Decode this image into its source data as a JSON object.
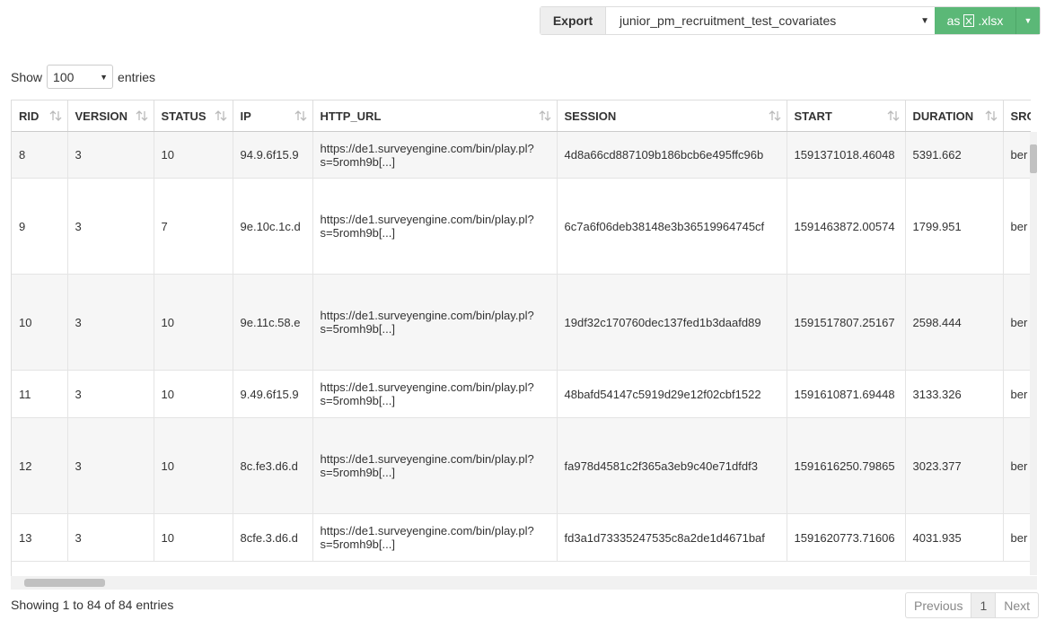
{
  "export": {
    "label": "Export",
    "dataset": "junior_pm_recruitment_test_covariates",
    "button_prefix": "as",
    "format": ".xlsx"
  },
  "length": {
    "prefix": "Show",
    "value": "100",
    "suffix": "entries"
  },
  "table": {
    "columns": [
      "RID",
      "VERSION",
      "STATUS",
      "IP",
      "HTTP_URL",
      "SESSION",
      "START",
      "DURATION",
      "SRC"
    ],
    "rows": [
      [
        "8",
        "3",
        "10",
        "94.9.6f15.9",
        [
          "https://de1.surveyengine.com/bin/play.pl?",
          "s=5romh9b[...]"
        ],
        "4d8a66cd887109b186bcb6e495ffc96b",
        "1591371018.46048",
        "5391.662",
        "ber"
      ],
      [
        "9",
        "3",
        "7",
        "9e.10c.1c.d",
        [
          "https://de1.surveyengine.com/bin/play.pl?",
          "s=5romh9b[...]"
        ],
        "6c7a6f06deb38148e3b36519964745cf",
        "1591463872.00574",
        "1799.951",
        "ber"
      ],
      [
        "10",
        "3",
        "10",
        "9e.11c.58.e",
        [
          "https://de1.surveyengine.com/bin/play.pl?",
          "s=5romh9b[...]"
        ],
        "19df32c170760dec137fed1b3daafd89",
        "1591517807.25167",
        "2598.444",
        "ber"
      ],
      [
        "11",
        "3",
        "10",
        "9.49.6f15.9",
        [
          "https://de1.surveyengine.com/bin/play.pl?",
          "s=5romh9b[...]"
        ],
        "48bafd54147c5919d29e12f02cbf1522",
        "1591610871.69448",
        "3133.326",
        "ber"
      ],
      [
        "12",
        "3",
        "10",
        "8c.fe3.d6.d",
        [
          "https://de1.surveyengine.com/bin/play.pl?",
          "s=5romh9b[...]"
        ],
        "fa978d4581c2f365a3eb9c40e71dfdf3",
        "1591616250.79865",
        "3023.377",
        "ber"
      ],
      [
        "13",
        "3",
        "10",
        "8cfe.3.d6.d",
        [
          "https://de1.surveyengine.com/bin/play.pl?",
          "s=5romh9b[...]"
        ],
        "fd3a1d73335247535c8a2de1d4671baf",
        "1591620773.71606",
        "4031.935",
        "ber"
      ]
    ]
  },
  "info": "Showing 1 to 84 of 84 entries",
  "pagination": {
    "previous": "Previous",
    "current": "1",
    "next": "Next"
  }
}
